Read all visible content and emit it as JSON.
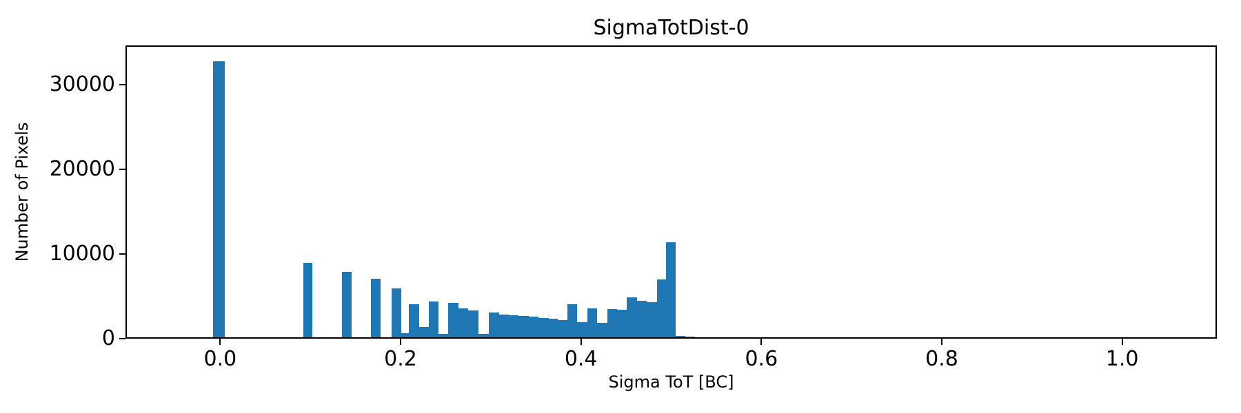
{
  "chart_data": {
    "type": "bar",
    "subtype": "histogram",
    "title": "SigmaTotDist-0",
    "xlabel": "Sigma ToT [BC]",
    "ylabel": "Number of Pixels",
    "xlim": [
      -0.105,
      1.105
    ],
    "ylim": [
      0,
      34600
    ],
    "grid": false,
    "legend": null,
    "bar_color": "#1f77b4",
    "axis_color": "#000000",
    "background_color": "#ffffff",
    "xticks": [
      {
        "value": 0.0,
        "label": "0.0"
      },
      {
        "value": 0.2,
        "label": "0.2"
      },
      {
        "value": 0.4,
        "label": "0.4"
      },
      {
        "value": 0.6,
        "label": "0.6"
      },
      {
        "value": 0.8,
        "label": "0.8"
      },
      {
        "value": 1.0,
        "label": "1.0"
      }
    ],
    "yticks": [
      {
        "value": 0,
        "label": "0"
      },
      {
        "value": 10000,
        "label": "10000"
      },
      {
        "value": 20000,
        "label": "20000"
      },
      {
        "value": 30000,
        "label": "30000"
      }
    ],
    "bins": [
      {
        "x0": -0.008,
        "x1": 0.005,
        "count": 32700
      },
      {
        "x0": 0.092,
        "x1": 0.102,
        "count": 8900
      },
      {
        "x0": 0.135,
        "x1": 0.146,
        "count": 7900
      },
      {
        "x0": 0.167,
        "x1": 0.178,
        "count": 7050
      },
      {
        "x0": 0.19,
        "x1": 0.201,
        "count": 5900
      },
      {
        "x0": 0.201,
        "x1": 0.209,
        "count": 650
      },
      {
        "x0": 0.209,
        "x1": 0.221,
        "count": 4100
      },
      {
        "x0": 0.221,
        "x1": 0.231,
        "count": 1400
      },
      {
        "x0": 0.231,
        "x1": 0.242,
        "count": 4350
      },
      {
        "x0": 0.242,
        "x1": 0.253,
        "count": 550
      },
      {
        "x0": 0.253,
        "x1": 0.264,
        "count": 4250
      },
      {
        "x0": 0.264,
        "x1": 0.275,
        "count": 3550
      },
      {
        "x0": 0.275,
        "x1": 0.286,
        "count": 3300
      },
      {
        "x0": 0.286,
        "x1": 0.298,
        "count": 550
      },
      {
        "x0": 0.298,
        "x1": 0.309,
        "count": 3050
      },
      {
        "x0": 0.309,
        "x1": 0.32,
        "count": 2870
      },
      {
        "x0": 0.32,
        "x1": 0.331,
        "count": 2780
      },
      {
        "x0": 0.331,
        "x1": 0.342,
        "count": 2690
      },
      {
        "x0": 0.342,
        "x1": 0.353,
        "count": 2600
      },
      {
        "x0": 0.353,
        "x1": 0.364,
        "count": 2450
      },
      {
        "x0": 0.364,
        "x1": 0.374,
        "count": 2330
      },
      {
        "x0": 0.374,
        "x1": 0.385,
        "count": 2170
      },
      {
        "x0": 0.385,
        "x1": 0.396,
        "count": 4100
      },
      {
        "x0": 0.396,
        "x1": 0.407,
        "count": 1975
      },
      {
        "x0": 0.407,
        "x1": 0.418,
        "count": 3600
      },
      {
        "x0": 0.418,
        "x1": 0.429,
        "count": 1850
      },
      {
        "x0": 0.429,
        "x1": 0.44,
        "count": 3500
      },
      {
        "x0": 0.44,
        "x1": 0.451,
        "count": 3400
      },
      {
        "x0": 0.451,
        "x1": 0.462,
        "count": 4850
      },
      {
        "x0": 0.462,
        "x1": 0.473,
        "count": 4450
      },
      {
        "x0": 0.473,
        "x1": 0.484,
        "count": 4280
      },
      {
        "x0": 0.484,
        "x1": 0.494,
        "count": 7000
      },
      {
        "x0": 0.494,
        "x1": 0.505,
        "count": 11350
      },
      {
        "x0": 0.505,
        "x1": 0.516,
        "count": 350
      },
      {
        "x0": 0.516,
        "x1": 0.526,
        "count": 250
      }
    ]
  }
}
